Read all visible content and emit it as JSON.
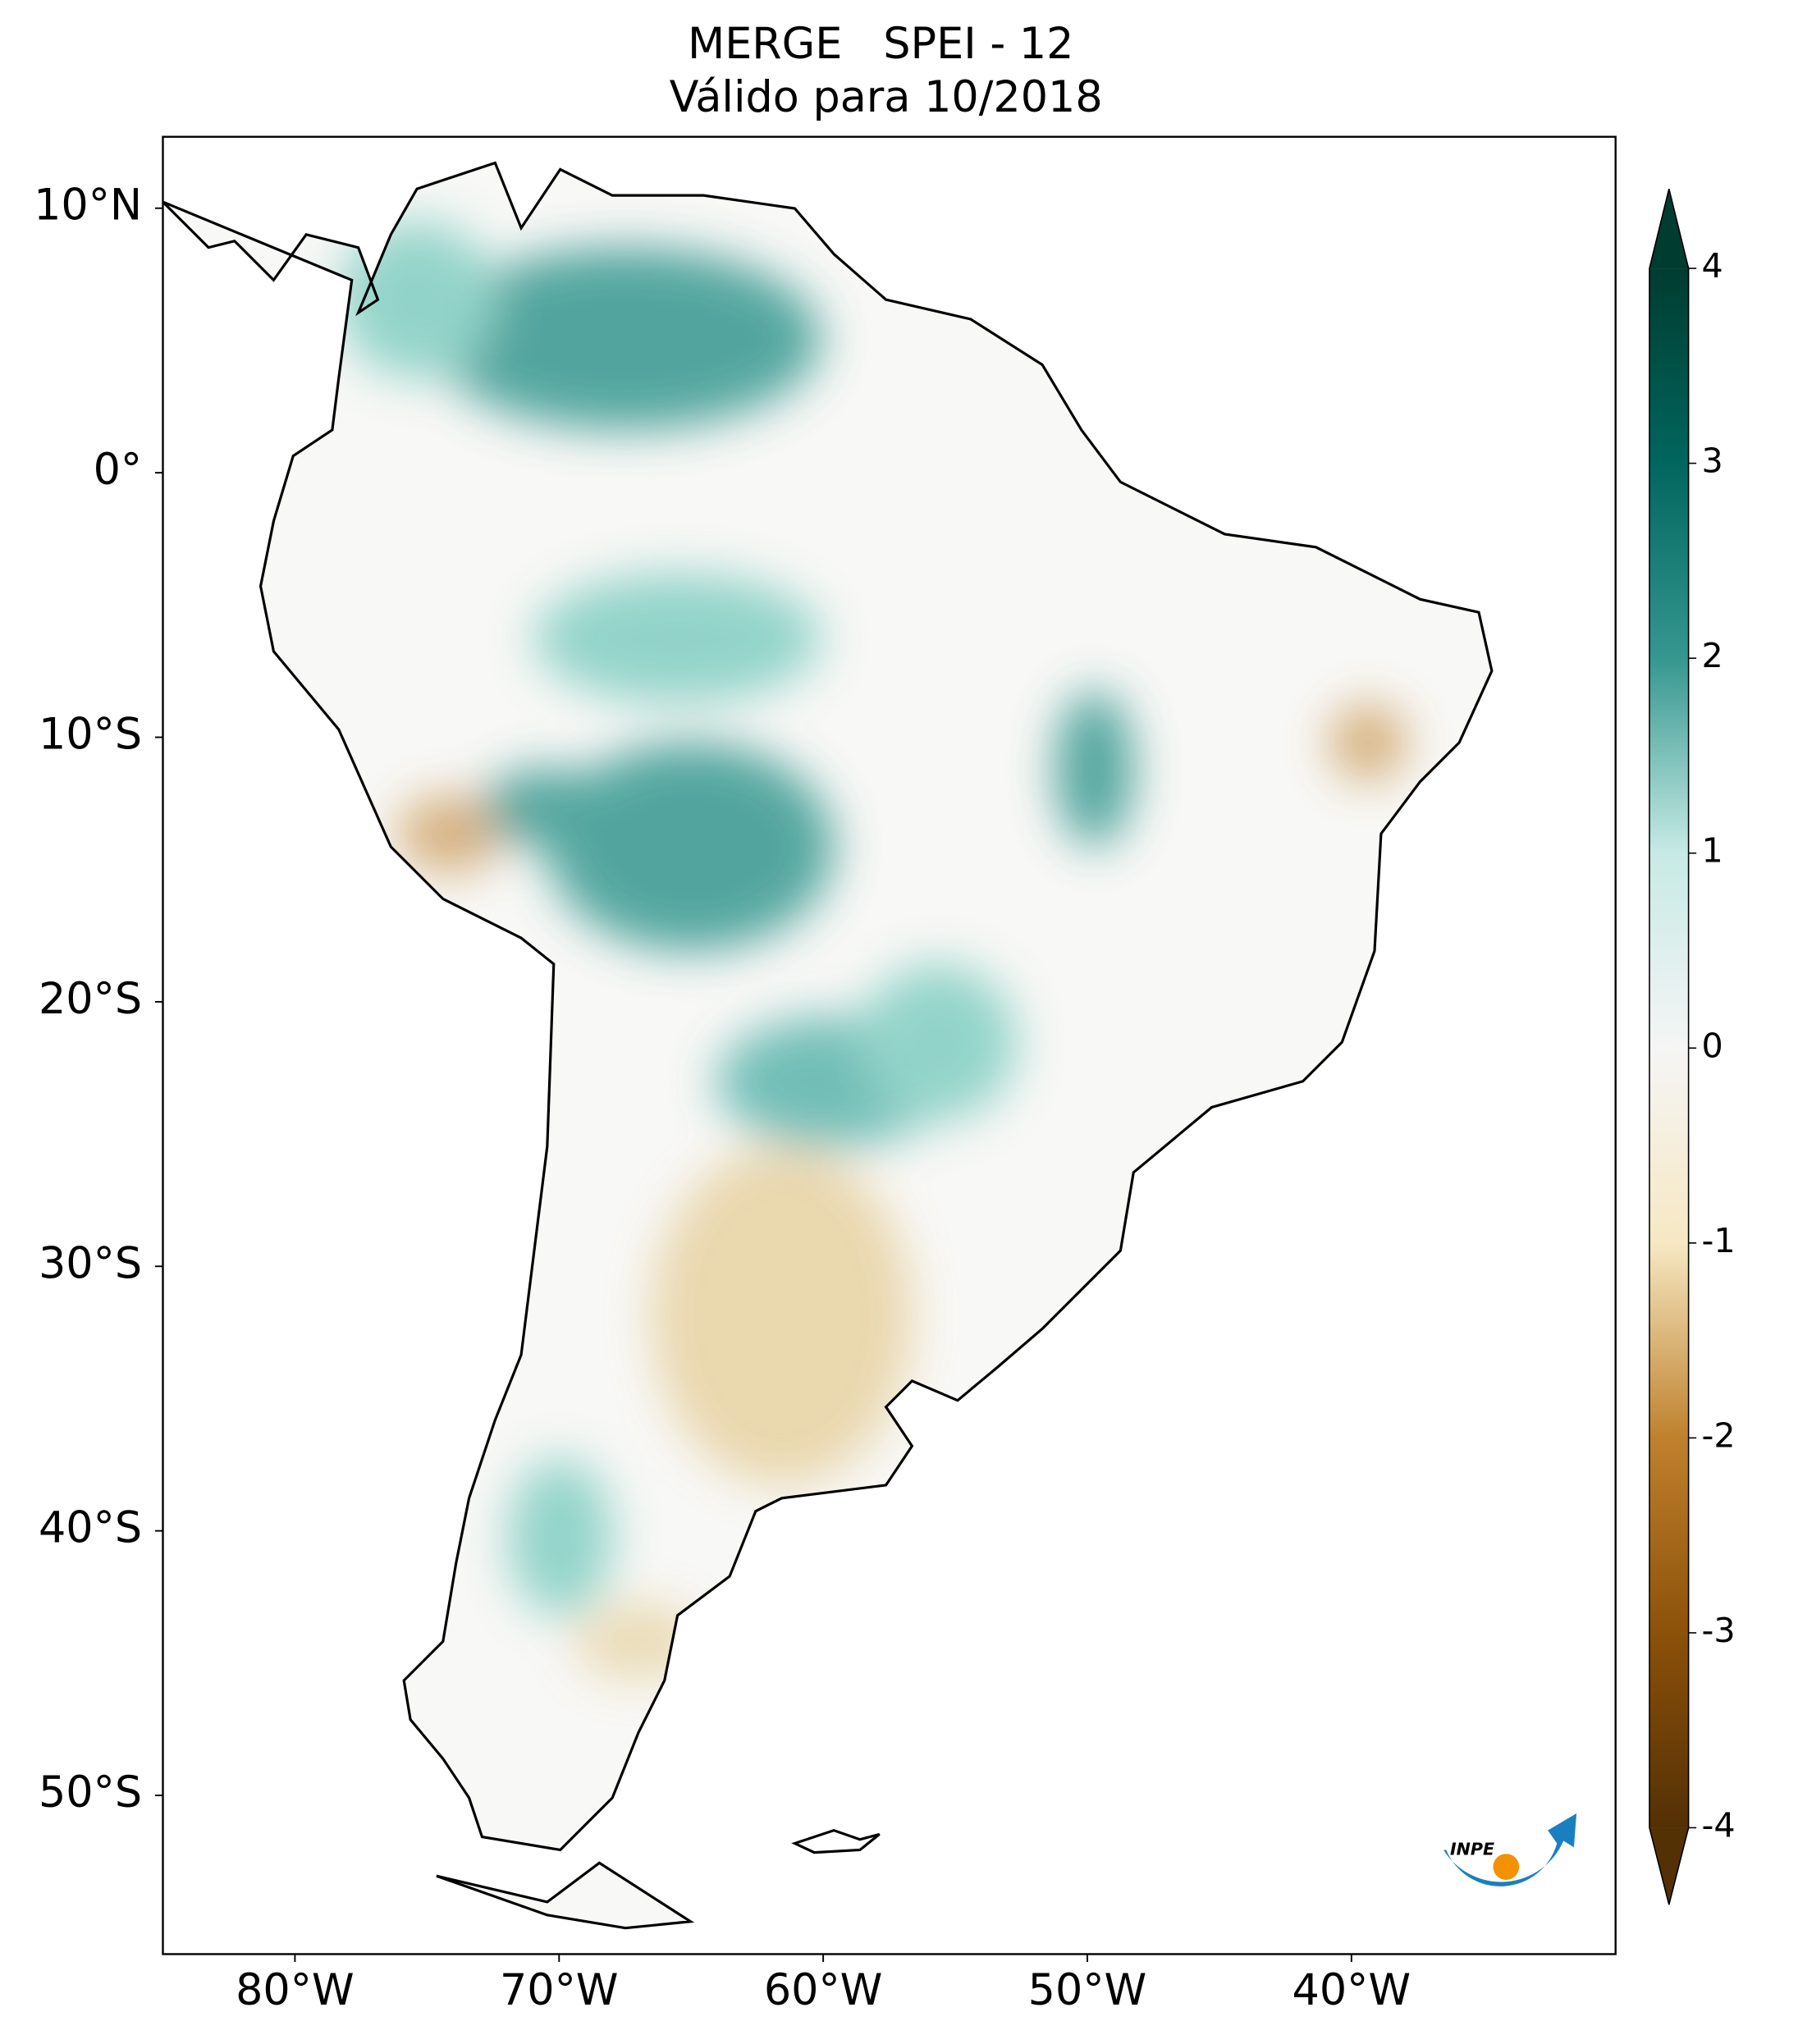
{
  "chart_data": {
    "type": "map",
    "title": [
      "MERGE   SPEI - 12",
      "Válido para 10/2018"
    ],
    "xlim": [
      -85,
      -30
    ],
    "ylim": [
      -56,
      12.7
    ],
    "xticks": [
      {
        "value": -80,
        "label": "80°W"
      },
      {
        "value": -70,
        "label": "70°W"
      },
      {
        "value": -60,
        "label": "60°W"
      },
      {
        "value": -50,
        "label": "50°W"
      },
      {
        "value": -40,
        "label": "40°W"
      }
    ],
    "yticks": [
      {
        "value": 10,
        "label": "10°N"
      },
      {
        "value": 0,
        "label": "0°"
      },
      {
        "value": -10,
        "label": "10°S"
      },
      {
        "value": -20,
        "label": "20°S"
      },
      {
        "value": -30,
        "label": "30°S"
      },
      {
        "value": -40,
        "label": "40°S"
      },
      {
        "value": -50,
        "label": "50°S"
      }
    ],
    "colorbar": {
      "lim": [
        -4,
        4
      ],
      "ticks": [
        -4,
        -3,
        -2,
        -1,
        0,
        1,
        2,
        3,
        4
      ],
      "colors": [
        "#543005",
        "#8c510a",
        "#bf812d",
        "#f6e8c3",
        "#f5f5f5",
        "#c7eae5",
        "#35978f",
        "#01665e",
        "#003c30"
      ]
    },
    "logo": "INPE"
  }
}
